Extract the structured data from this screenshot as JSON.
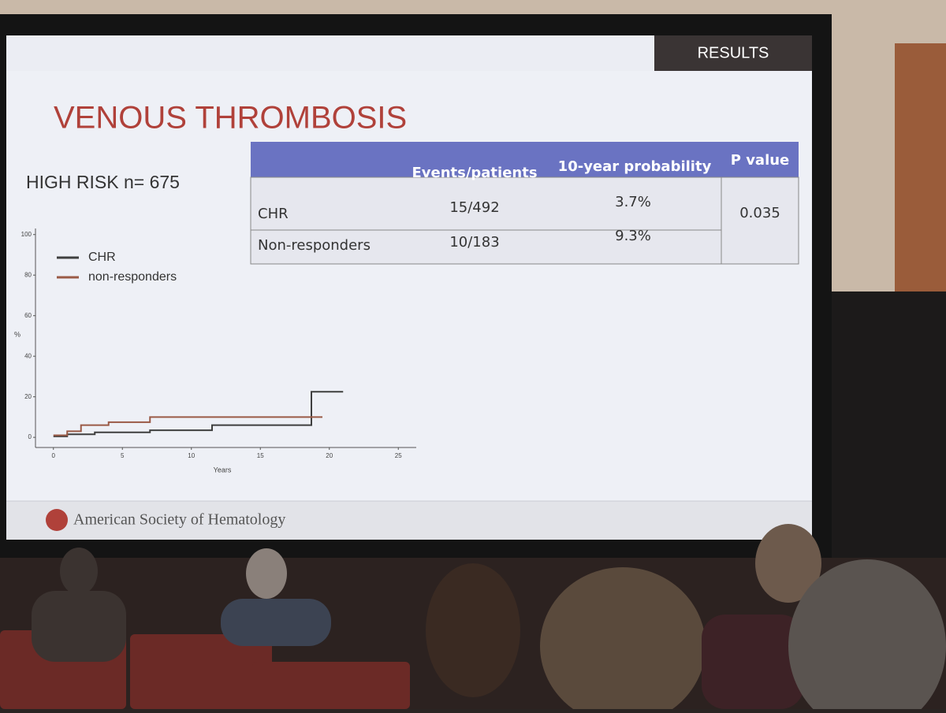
{
  "header": {
    "section": "RESULTS"
  },
  "title": "VENOUS THROMBOSIS",
  "subtitle": "HIGH RISK n= 675",
  "table": {
    "header": [
      "Events/patients",
      "10-year probability",
      "P value"
    ],
    "rows": [
      [
        "CHR",
        "15/492",
        "3.7%"
      ],
      [
        "Non-responders",
        "10/183",
        "9.3%"
      ]
    ],
    "p_value": "0.035"
  },
  "chart_data": {
    "type": "line",
    "x_label": "Years",
    "y_label": "%",
    "xlim": [
      -1.3,
      26.3
    ],
    "ylim": [
      -5,
      103
    ],
    "xticks": [
      0,
      5,
      10,
      15,
      20,
      25
    ],
    "yticks": [
      0,
      20,
      40,
      60,
      80,
      100
    ],
    "legend": "upper left",
    "series": [
      {
        "name": "CHR",
        "color": "#3f3f3f",
        "x": [
          0,
          1,
          1,
          3,
          3,
          7,
          7,
          11.5,
          11.5,
          18.7,
          18.7,
          21
        ],
        "values": [
          0.5,
          0.5,
          1.5,
          1.5,
          2.5,
          2.5,
          3.5,
          3.5,
          6,
          6,
          22.5,
          22.5
        ]
      },
      {
        "name": "non-responders",
        "color": "#9a5a46",
        "x": [
          0,
          1,
          1,
          2,
          2,
          4,
          4,
          7,
          7,
          19.5
        ],
        "values": [
          1,
          1,
          3,
          3,
          6,
          6,
          7.5,
          7.5,
          10,
          10
        ]
      }
    ]
  },
  "footer": "American Society of Hematology"
}
